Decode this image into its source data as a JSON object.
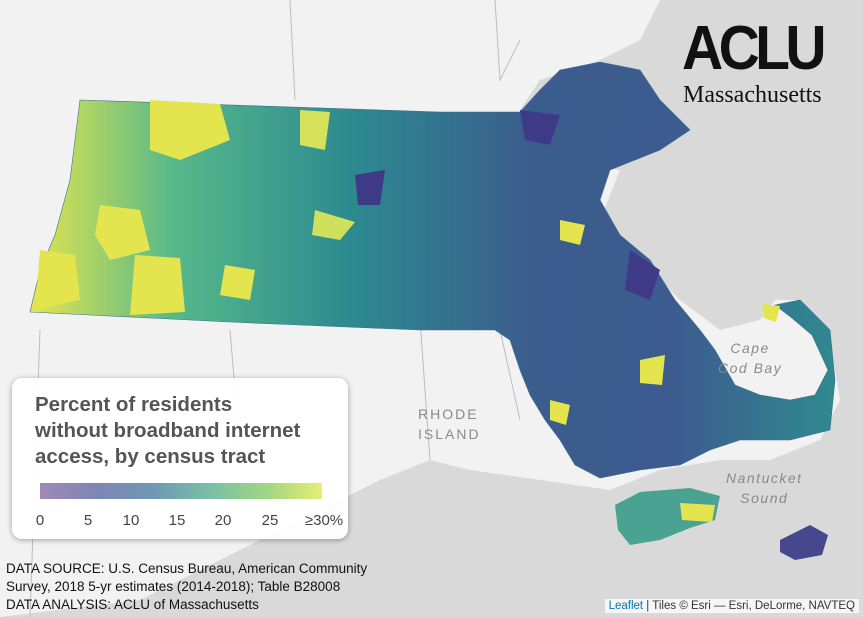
{
  "legend": {
    "title_lines": [
      "Percent of residents",
      "without broadband internet",
      "access, by census tract"
    ],
    "ticks": [
      "0",
      "5",
      "10",
      "15",
      "20",
      "25",
      "≥30%"
    ],
    "gradient_colors": [
      "#a089b5",
      "#7e86b4",
      "#6f98b4",
      "#78bfa7",
      "#9fd583",
      "#e7ee73"
    ]
  },
  "logo": {
    "name": "ACLU",
    "state": "Massachusetts"
  },
  "labels": {
    "cape_cod_bay": [
      "Cape",
      "Cod Bay"
    ],
    "nantucket_sound": [
      "Nantucket",
      "Sound"
    ],
    "rhode_island": [
      "RHODE",
      "ISLAND"
    ]
  },
  "source": {
    "line1": "DATA SOURCE: U.S. Census Bureau, American Community",
    "line2": "Survey, 2018 5-yr estimates (2014-2018); Table B28008",
    "line3": "DATA ANALYSIS: ACLU of Massachusetts"
  },
  "attribution": {
    "leaflet": "Leaflet",
    "sep": " | ",
    "tiles": "Tiles © Esri — Esri, DeLorme, NAVTEQ"
  },
  "colors": {
    "water": "#d9d9d9",
    "land": "#f2f2f2",
    "dark_tract": "#3f3a87",
    "mid_tract": "#2c8a8f",
    "light_tract": "#e8e74b"
  }
}
